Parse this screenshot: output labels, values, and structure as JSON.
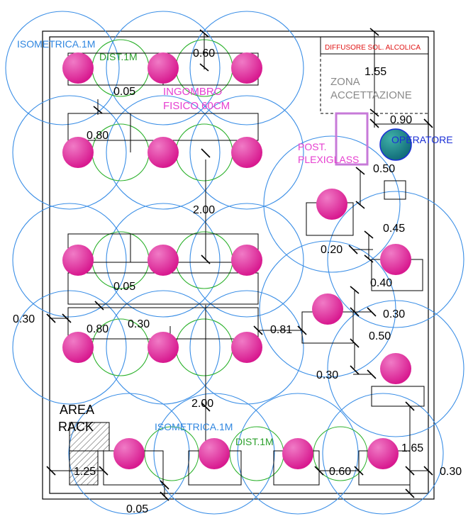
{
  "colors": {
    "wall": "#000000",
    "isometric_circle": "#3a8ee6",
    "distance_circle": "#2bb12b",
    "person": "#e0359e",
    "operator": "#1f8a8f",
    "text_blue": "#2f86e0",
    "text_green": "#2ca02c",
    "text_magenta": "#e63fd0",
    "text_red": "#e01515",
    "text_gray": "#8a8a8a",
    "text_darkblue": "#1b2fd6",
    "plexiglass": "#c77ad8"
  },
  "labels": {
    "isometrica_top": "ISOMETRICA.1M",
    "dist_top": "DIST.1M",
    "ingombro_line1": "INGOMBRO",
    "ingombro_line2": "FISICO 60CM",
    "diffusore": "DIFFUSORE SOL. ALCOLICA",
    "zona_line1": "ZONA",
    "zona_line2": "ACCETTAZIONE",
    "operatore": "OPERATORE",
    "post_line1": "POST.",
    "post_line2": "PLEXIGLASS",
    "area_line1": "AREA",
    "area_line2": "RACK",
    "isometrica_bottom": "ISOMETRICA.1M",
    "dist_bottom": "DIST.1M"
  },
  "dimensions": {
    "d060_top": "0.60",
    "d155": "1.55",
    "d005_a": "0.05",
    "d080_a": "0.80",
    "d090": "0.90",
    "d050_a": "0.50",
    "d200_a": "2.00",
    "d045": "0.45",
    "d020": "0.20",
    "d005_b": "0.05",
    "d040": "0.40",
    "d030_left": "0.30",
    "d030_mid": "0.30",
    "d080_b": "0.80",
    "d030_right": "0.30",
    "d081": "0.81",
    "d050_b": "0.50",
    "d030_lower": "0.30",
    "d200_b": "2.00",
    "d125": "1.25",
    "d165": "1.65",
    "d060_bottom": "0.60",
    "d030_edge": "0.30",
    "d005_bottom": "0.05"
  }
}
